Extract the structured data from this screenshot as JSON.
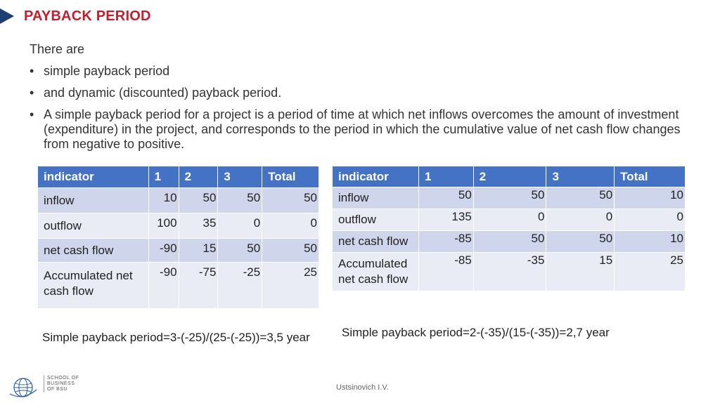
{
  "title": "PAYBACK PERIOD",
  "intro": "There are",
  "bullets": [
    "simple payback period",
    "and dynamic (discounted) payback period.",
    "A simple payback period for a project is a period of time at which net inflows overcomes the amount of investment (expenditure) in the project, and corresponds to the period in which the cumulative value of net cash flow changes from negative to positive."
  ],
  "table1": {
    "headers": [
      "indicator",
      "1",
      "2",
      "3",
      "Total"
    ],
    "rows": [
      [
        "inflow",
        "10",
        "50",
        "50",
        "50"
      ],
      [
        "outflow",
        "100",
        "35",
        "0",
        "0"
      ],
      [
        "net cash flow",
        "-90",
        "15",
        "50",
        "50"
      ],
      [
        "Accumulated net cash flow",
        "-90",
        "-75",
        "-25",
        "25"
      ]
    ]
  },
  "table2": {
    "headers": [
      "indicator",
      "1",
      "2",
      "3",
      "Total"
    ],
    "rows": [
      [
        "inflow",
        "50",
        "50",
        "50",
        "10"
      ],
      [
        "outflow",
        "135",
        "0",
        "0",
        "0"
      ],
      [
        "net cash flow",
        "-85",
        "50",
        "50",
        "10"
      ],
      [
        "Accumulated net cash flow",
        "-85",
        "-35",
        "15",
        "25"
      ]
    ]
  },
  "formula1": "Simple payback period=3-(-25)/(25-(-25))=3,5 year",
  "formula2": "Simple payback period=2-(-35)/(15-(-35))=2,7 year",
  "footer": "Ustsinovich I.V.",
  "logo": {
    "line1": "SCHOOL OF",
    "line2": "BUSINESS",
    "line3": "OF BSU"
  }
}
